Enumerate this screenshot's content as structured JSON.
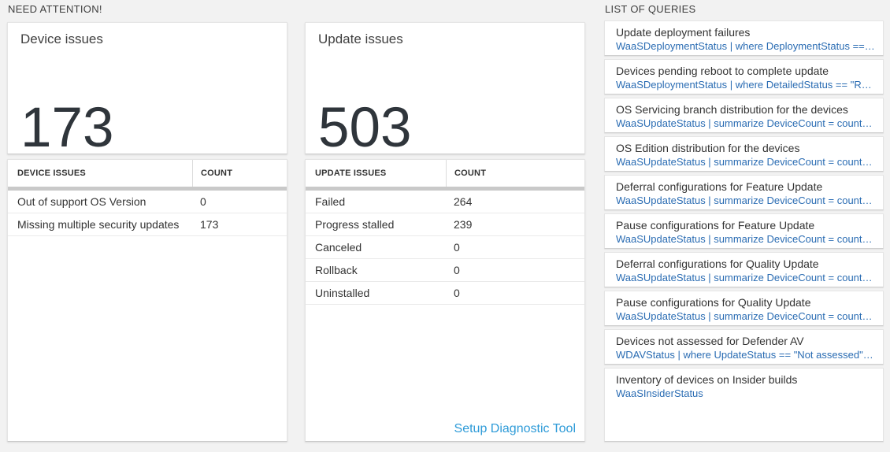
{
  "sections": {
    "need_attention": {
      "title": "NEED ATTENTION!"
    },
    "queries": {
      "title": "LIST OF QUERIES"
    }
  },
  "device_card": {
    "title": "Device issues",
    "count": "173"
  },
  "device_table": {
    "headers": [
      "DEVICE ISSUES",
      "COUNT"
    ],
    "rows": [
      {
        "label": "Out of support OS Version",
        "count": "0"
      },
      {
        "label": "Missing multiple security updates",
        "count": "173"
      }
    ]
  },
  "update_card": {
    "title": "Update issues",
    "count": "503"
  },
  "update_table": {
    "headers": [
      "UPDATE ISSUES",
      "COUNT"
    ],
    "rows": [
      {
        "label": "Failed",
        "count": "264"
      },
      {
        "label": "Progress stalled",
        "count": "239"
      },
      {
        "label": "Canceled",
        "count": "0"
      },
      {
        "label": "Rollback",
        "count": "0"
      },
      {
        "label": "Uninstalled",
        "count": "0"
      }
    ],
    "footer_link": "Setup Diagnostic Tool"
  },
  "query_list": {
    "items": [
      {
        "title": "Update deployment failures",
        "query": "WaaSDeploymentStatus | where DeploymentStatus == \"Failed\" |..."
      },
      {
        "title": "Devices pending reboot to complete update",
        "query": "WaaSDeploymentStatus | where DetailedStatus == \"Reboot pend..."
      },
      {
        "title": "OS Servicing branch distribution for the devices",
        "query": "WaaSUpdateStatus | summarize DeviceCount = count() by OSSer..."
      },
      {
        "title": "OS Edition distribution for the devices",
        "query": "WaaSUpdateStatus | summarize DeviceCount = count() by OSEdit..."
      },
      {
        "title": "Deferral configurations for Feature Update",
        "query": "WaaSUpdateStatus | summarize DeviceCount = count() by Featur..."
      },
      {
        "title": "Pause configurations for Feature Update",
        "query": "WaaSUpdateStatus | summarize DeviceCount = count() by Featur..."
      },
      {
        "title": "Deferral configurations for Quality Update",
        "query": "WaaSUpdateStatus | summarize DeviceCount = count() by Qualit..."
      },
      {
        "title": "Pause configurations for Quality Update",
        "query": "WaaSUpdateStatus | summarize DeviceCount = count() by Qualit..."
      },
      {
        "title": "Devices not assessed for Defender AV",
        "query": "WDAVStatus | where UpdateStatus == \"Not assessed\" | render ta..."
      },
      {
        "title": "Inventory of devices on Insider builds",
        "query": "WaaSInsiderStatus"
      }
    ]
  },
  "colors": {
    "page_background": "#f2f2f2",
    "card_background": "#ffffff",
    "big_number_text": "#2f353b",
    "query_code_blue": "#2a6cb3",
    "setup_link_blue": "#2e9bd8",
    "thick_divider": "#c9c9c9"
  }
}
